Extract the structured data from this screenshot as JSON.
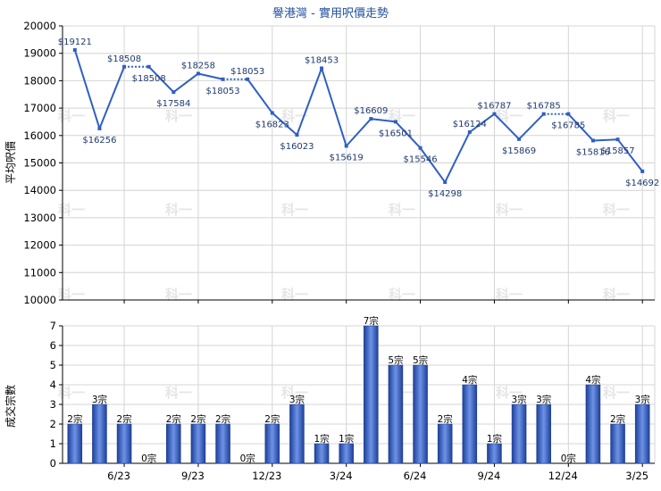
{
  "chart_data": [
    {
      "type": "line",
      "title": "譽港灣 - 實用呎價走勢",
      "ylabel": "平均呎價",
      "ylim": [
        10000,
        20000
      ],
      "y_ticks": [
        10000,
        11000,
        12000,
        13000,
        14000,
        15000,
        16000,
        17000,
        18000,
        19000,
        20000
      ],
      "x_tick_labels": [
        "6/23",
        "9/23",
        "12/23",
        "3/24",
        "6/24",
        "9/24",
        "12/24",
        "3/25"
      ],
      "grid": true,
      "series": [
        {
          "color": "#2f5fc4",
          "values": [
            19121,
            16256,
            18508,
            18508,
            17584,
            18258,
            18053,
            18053,
            16823,
            16023,
            18453,
            15619,
            16609,
            16501,
            15546,
            14298,
            16124,
            16787,
            15869,
            16785,
            16785,
            15816,
            15857,
            14692
          ],
          "labels": [
            "$19121",
            "$16256",
            "$18508",
            "$18508",
            "$17584",
            "$18258",
            "$18053",
            "$18053",
            "$16823",
            "$16023",
            "$18453",
            "$15619",
            "$16609",
            "$16501",
            "$15546",
            "$14298",
            "$16124",
            "$16787",
            "$15869",
            "$16785",
            "$16785",
            "$15816",
            "$15857",
            "$14692"
          ],
          "estimated": [
            false,
            false,
            false,
            true,
            false,
            false,
            false,
            true,
            false,
            false,
            false,
            false,
            false,
            false,
            false,
            false,
            false,
            false,
            false,
            false,
            true,
            false,
            false,
            false
          ]
        }
      ]
    },
    {
      "type": "bar",
      "ylabel": "成交宗數",
      "ylim": [
        0,
        7
      ],
      "y_ticks": [
        0,
        1,
        2,
        3,
        4,
        5,
        6,
        7
      ],
      "x_tick_labels": [
        "6/23",
        "9/23",
        "12/23",
        "3/24",
        "6/24",
        "9/24",
        "12/24",
        "3/25"
      ],
      "grid": true,
      "series": [
        {
          "color": "#3a64c8",
          "values": [
            2,
            3,
            2,
            0,
            2,
            2,
            2,
            0,
            2,
            3,
            1,
            1,
            7,
            5,
            5,
            2,
            4,
            1,
            3,
            3,
            0,
            4,
            2,
            3
          ],
          "labels": [
            "2宗",
            "3宗",
            "2宗",
            "0宗",
            "2宗",
            "2宗",
            "2宗",
            "0宗",
            "2宗",
            "3宗",
            "1宗",
            "1宗",
            "7宗",
            "5宗",
            "5宗",
            "2宗",
            "4宗",
            "1宗",
            "3宗",
            "3宗",
            "0宗",
            "4宗",
            "2宗",
            "3宗"
          ]
        }
      ]
    }
  ],
  "watermark": "科一"
}
